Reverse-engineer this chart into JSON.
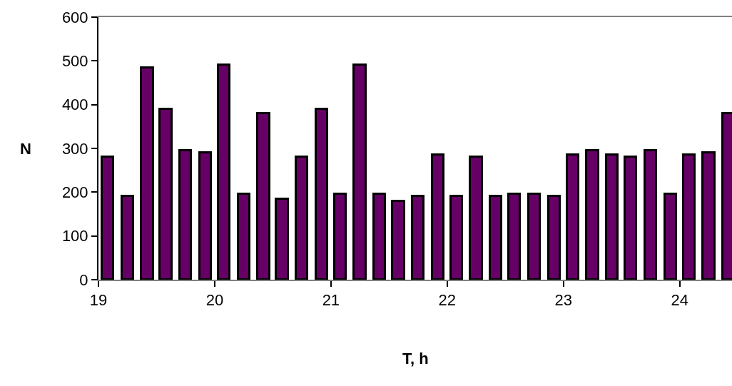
{
  "chart_data": {
    "type": "bar",
    "xlabel": "T, h",
    "ylabel": "N",
    "x": [
      19.08,
      19.25,
      19.42,
      19.58,
      19.75,
      19.92,
      20.08,
      20.25,
      20.42,
      20.58,
      20.75,
      20.92,
      21.08,
      21.25,
      21.42,
      21.58,
      21.75,
      21.92,
      22.08,
      22.25,
      22.42,
      22.58,
      22.75,
      22.92,
      23.08,
      23.25,
      23.42,
      23.58,
      23.75,
      23.92,
      24.08,
      24.25,
      24.42
    ],
    "values": [
      280,
      190,
      485,
      390,
      295,
      290,
      490,
      195,
      380,
      185,
      280,
      390,
      195,
      490,
      195,
      180,
      190,
      285,
      190,
      280,
      190,
      195,
      195,
      190,
      285,
      295,
      285,
      280,
      295,
      195,
      285,
      290,
      380
    ],
    "color": "#660066",
    "xlim": [
      19,
      24.45
    ],
    "xticks": [
      19,
      20,
      21,
      22,
      23,
      24
    ],
    "ylim": [
      0,
      600
    ],
    "yticks": [
      0,
      100,
      200,
      300,
      400,
      500,
      600
    ]
  }
}
